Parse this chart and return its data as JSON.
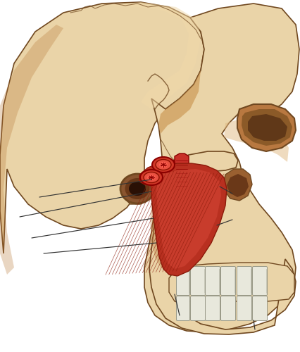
{
  "background_color": "#ffffff",
  "bone_light": "#dfc090",
  "bone_lighter": "#ead4a8",
  "bone_mid": "#c8965c",
  "bone_dark": "#a07040",
  "bone_shadow": "#704820",
  "muscle_base": "#b83020",
  "muscle_mid": "#cc3828",
  "muscle_bright": "#d84838",
  "muscle_fiber": "#8b1a0a",
  "muscle_dark": "#7a1808",
  "white_teeth": "#ddddd0",
  "teeth_edge": "#aaaaaa",
  "ear_dark": "#5a3015",
  "ear_mid": "#8a5530",
  "annotation_color": "#333333",
  "annotation_lw": 0.85,
  "figsize": [
    4.27,
    5.0
  ],
  "dpi": 100
}
